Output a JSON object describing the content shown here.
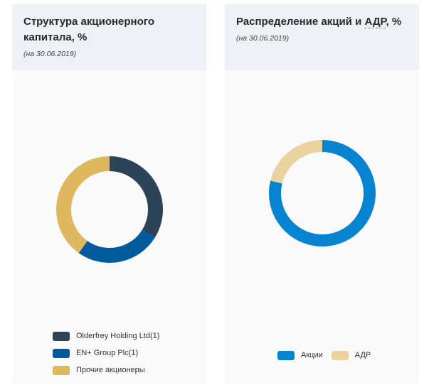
{
  "left_card": {
    "title_line1": "Структура акционерного",
    "title_line2": "капитала, %",
    "subtitle": "(на 30.06.2019)"
  },
  "right_card": {
    "title_main": "Распределение акций и ",
    "title_abbr": "АДР",
    "title_tail": ", %",
    "subtitle": "(на 30.06.2019)"
  },
  "chart_data": [
    {
      "type": "pie",
      "donut": true,
      "title": "Структура акционерного капитала, %",
      "subtitle": "(на 30.06.2019)",
      "categories": [
        "Olderfrey Holding Ltd(1)",
        "EN+ Group Plc(1)",
        "Прочие акционеры"
      ],
      "values": [
        33.8,
        26.0,
        40.2
      ],
      "colors": [
        "#2d4357",
        "#005a9c",
        "#dfb75e"
      ],
      "legend": "bottom"
    },
    {
      "type": "pie",
      "donut": true,
      "title": "Распределение акций и АДР, %",
      "subtitle": "(на 30.06.2019)",
      "categories": [
        "Акции",
        "АДР"
      ],
      "values": [
        78.8,
        21.2
      ],
      "colors": [
        "#0684cf",
        "#ead3a0"
      ],
      "legend": "bottom"
    }
  ]
}
